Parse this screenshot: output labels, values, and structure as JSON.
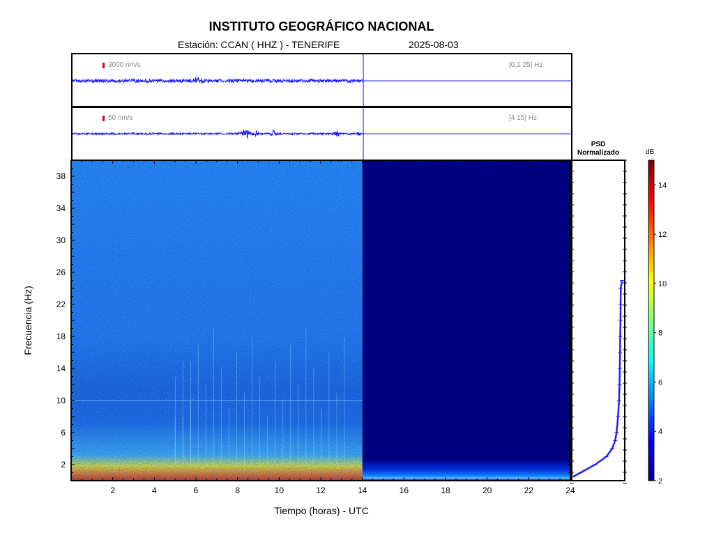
{
  "title": "INSTITUTO GEOGRÁFICO NACIONAL",
  "subtitle_station": "Estación:  CCAN ( HHZ ) - TENERIFE",
  "subtitle_date": "2025-08-03",
  "trace1": {
    "scale_label": "3000 nm/s",
    "band_label": "[0.1 25] Hz"
  },
  "trace2": {
    "scale_label": "50 nm/s",
    "band_label": "[4 15] Hz"
  },
  "psd": {
    "title_line1": "PSD",
    "title_line2": "Normalizado"
  },
  "colorbar": {
    "unit": "dB",
    "ticks": [
      2,
      4,
      6,
      8,
      10,
      12,
      14
    ],
    "range": [
      2,
      15
    ]
  },
  "colors": {
    "trace": "#1a1aff",
    "spectrogram_empty": "#000080",
    "scale_bar": "#d40000"
  },
  "chart_data": {
    "type": "heatmap",
    "xlabel": "Tiempo (horas) - UTC",
    "ylabel": "Frecuencia  (Hz)",
    "x_ticks": [
      2,
      4,
      6,
      8,
      10,
      12,
      14,
      16,
      18,
      20,
      22,
      24
    ],
    "y_ticks": [
      2,
      6,
      10,
      14,
      18,
      22,
      26,
      30,
      34,
      38
    ],
    "xlim": [
      0,
      24
    ],
    "ylim": [
      0,
      40
    ],
    "data_end_hour": 14,
    "colormap": "jet",
    "psd_profile": {
      "frequency_hz": [
        0.5,
        1,
        2,
        3,
        4,
        5,
        6,
        8,
        10,
        12,
        14,
        16,
        18,
        20,
        22,
        24,
        25
      ],
      "normalized_power": [
        1.0,
        0.85,
        0.55,
        0.32,
        0.2,
        0.14,
        0.11,
        0.08,
        0.06,
        0.05,
        0.045,
        0.04,
        0.035,
        0.03,
        0.028,
        0.025,
        0.0
      ]
    }
  }
}
